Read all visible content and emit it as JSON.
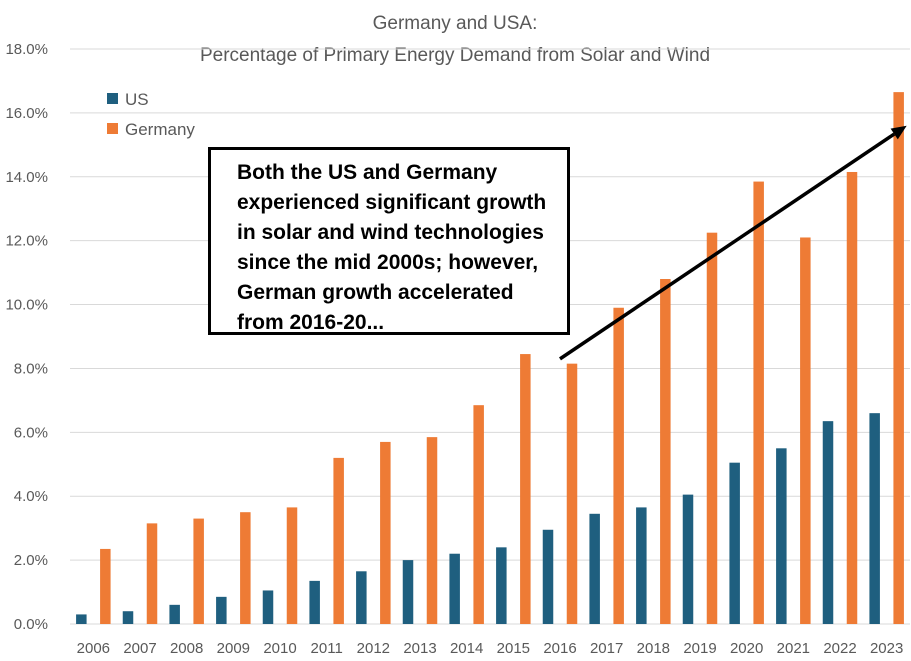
{
  "chart_data": {
    "type": "bar",
    "title": "Germany and USA:",
    "subtitle": "Percentage of Primary Energy Demand from Solar and Wind",
    "xlabel": "",
    "ylabel": "",
    "categories": [
      "2006",
      "2007",
      "2008",
      "2009",
      "2010",
      "2011",
      "2012",
      "2013",
      "2014",
      "2015",
      "2016",
      "2017",
      "2018",
      "2019",
      "2020",
      "2021",
      "2022",
      "2023"
    ],
    "series": [
      {
        "name": "US",
        "color": "#1f5f7f",
        "values": [
          0.3,
          0.4,
          0.6,
          0.85,
          1.05,
          1.35,
          1.65,
          2.0,
          2.2,
          2.4,
          2.95,
          3.45,
          3.65,
          4.05,
          5.05,
          5.5,
          6.35,
          6.6
        ]
      },
      {
        "name": "Germany",
        "color": "#ee7b35",
        "values": [
          2.35,
          3.15,
          3.3,
          3.5,
          3.65,
          5.2,
          5.7,
          5.85,
          6.85,
          8.45,
          8.15,
          9.9,
          10.8,
          12.25,
          13.85,
          12.1,
          14.15,
          16.65
        ]
      }
    ],
    "ylim": [
      0,
      18
    ],
    "y_ticks": [
      "0.0%",
      "2.0%",
      "4.0%",
      "6.0%",
      "8.0%",
      "10.0%",
      "12.0%",
      "14.0%",
      "16.0%",
      "18.0%"
    ],
    "grid": true,
    "legend_position": "top-left",
    "annotation": {
      "lines": [
        "Both the US and Germany",
        "experienced significant growth",
        "in solar and wind technologies",
        "since the mid 2000s; however,",
        "German growth accelerated",
        "from 2016-20..."
      ],
      "arrow_from": {
        "category": "2016",
        "value": 8.3
      },
      "arrow_to": {
        "category": "2023",
        "value": 15.6
      }
    },
    "colors": {
      "gridline": "#d9d9d9",
      "text": "#595959",
      "arrow": "#000000"
    }
  }
}
